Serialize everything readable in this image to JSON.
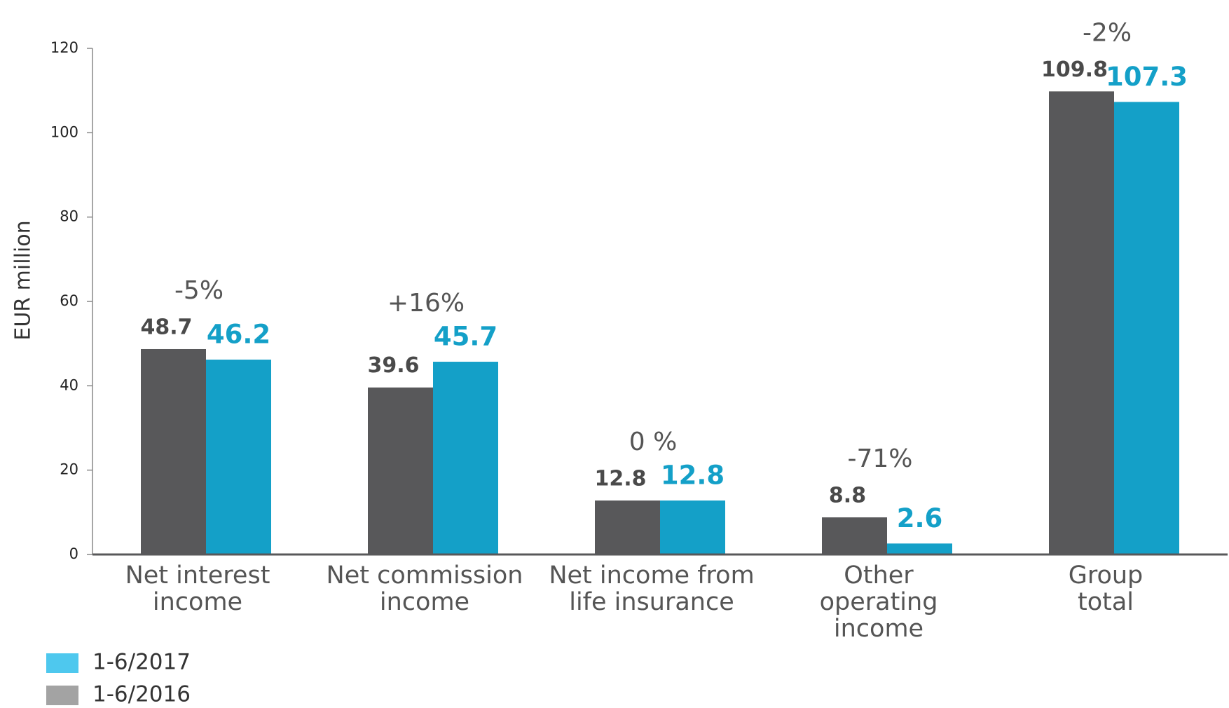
{
  "chart_data": {
    "type": "bar",
    "y_label": "EUR million",
    "categories": [
      [
        "Net interest",
        "income"
      ],
      [
        "Net commission",
        "income"
      ],
      [
        "Net income from",
        "life insurance"
      ],
      [
        "Other",
        "operating",
        "income"
      ],
      [
        "Group",
        "total"
      ]
    ],
    "series": [
      {
        "name": "1-6/2016",
        "color": "#58585a",
        "legend_color": "#a3a3a3",
        "values": [
          48.7,
          39.6,
          12.8,
          8.8,
          109.8
        ]
      },
      {
        "name": "1-6/2017",
        "color": "#14a0c8",
        "legend_color": "#4ec8ee",
        "values": [
          46.2,
          45.7,
          12.8,
          2.6,
          107.3
        ]
      }
    ],
    "changes": [
      "-5%",
      "+16%",
      "0 %",
      "-71%",
      "-2%"
    ],
    "ylim": [
      0,
      120
    ],
    "yticks": [
      0,
      20,
      40,
      60,
      80,
      100,
      120
    ],
    "grid": false,
    "legend": "bottom-left"
  }
}
